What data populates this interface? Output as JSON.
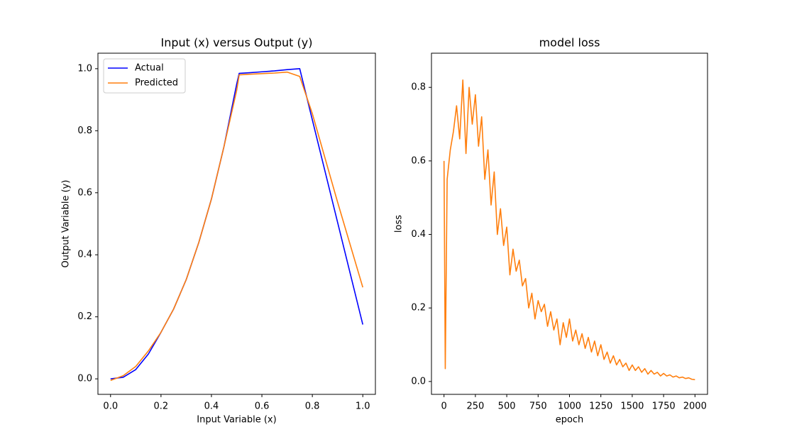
{
  "chart_data": [
    {
      "type": "line",
      "title": "Input (x) versus Output (y)",
      "xlabel": "Input Variable (x)",
      "ylabel": "Output Variable (y)",
      "x": [
        0,
        0.05,
        0.1,
        0.15,
        0.2,
        0.25,
        0.3,
        0.35,
        0.4,
        0.45,
        0.5,
        0.51,
        0.55,
        0.6,
        0.65,
        0.7,
        0.75,
        0.8,
        0.9,
        1.0
      ],
      "series": [
        {
          "name": "Actual",
          "color": "#0000ff",
          "values": [
            0,
            0.005,
            0.03,
            0.08,
            0.15,
            0.225,
            0.32,
            0.44,
            0.58,
            0.75,
            0.95,
            0.985,
            0.987,
            0.99,
            0.993,
            0.997,
            1.0,
            0.835,
            0.505,
            0.175
          ]
        },
        {
          "name": "Predicted",
          "color": "#ff7f0e",
          "values": [
            -0.005,
            0.01,
            0.04,
            0.09,
            0.15,
            0.225,
            0.32,
            0.44,
            0.58,
            0.75,
            0.93,
            0.98,
            0.982,
            0.984,
            0.986,
            0.989,
            0.975,
            0.855,
            0.57,
            0.295
          ]
        }
      ],
      "xlim": [
        -0.05,
        1.05
      ],
      "ylim": [
        -0.05,
        1.05
      ],
      "xticks": [
        {
          "value": 0,
          "label": "0.0"
        },
        0.2,
        0.4,
        0.6,
        0.8,
        {
          "value": 1,
          "label": "1.0"
        }
      ],
      "yticks": [
        {
          "value": 0,
          "label": "0.0"
        },
        0.2,
        0.4,
        0.6,
        0.8,
        {
          "value": 1,
          "label": "1.0"
        }
      ],
      "legend": "upper left"
    },
    {
      "type": "line",
      "title": "model loss",
      "xlabel": "epoch",
      "ylabel": "loss",
      "color": "#ff7f0e",
      "x": [
        0,
        10,
        25,
        50,
        75,
        100,
        125,
        150,
        175,
        200,
        225,
        250,
        275,
        300,
        325,
        350,
        375,
        400,
        425,
        450,
        475,
        500,
        525,
        550,
        575,
        600,
        625,
        650,
        675,
        700,
        725,
        750,
        775,
        800,
        825,
        850,
        875,
        900,
        925,
        950,
        975,
        1000,
        1025,
        1050,
        1075,
        1100,
        1125,
        1150,
        1175,
        1200,
        1225,
        1250,
        1275,
        1300,
        1325,
        1350,
        1375,
        1400,
        1425,
        1450,
        1475,
        1500,
        1525,
        1550,
        1575,
        1600,
        1625,
        1650,
        1675,
        1700,
        1725,
        1750,
        1775,
        1800,
        1825,
        1850,
        1875,
        1900,
        1925,
        1950,
        1975,
        2000
      ],
      "values": [
        0.6,
        0.035,
        0.55,
        0.63,
        0.68,
        0.75,
        0.66,
        0.82,
        0.62,
        0.8,
        0.7,
        0.78,
        0.64,
        0.72,
        0.55,
        0.63,
        0.48,
        0.57,
        0.4,
        0.47,
        0.37,
        0.42,
        0.29,
        0.36,
        0.3,
        0.33,
        0.26,
        0.28,
        0.2,
        0.24,
        0.17,
        0.22,
        0.19,
        0.21,
        0.15,
        0.19,
        0.14,
        0.17,
        0.1,
        0.16,
        0.12,
        0.17,
        0.11,
        0.14,
        0.1,
        0.13,
        0.09,
        0.12,
        0.08,
        0.11,
        0.07,
        0.1,
        0.06,
        0.08,
        0.05,
        0.07,
        0.045,
        0.06,
        0.04,
        0.05,
        0.03,
        0.045,
        0.03,
        0.04,
        0.025,
        0.035,
        0.02,
        0.03,
        0.02,
        0.025,
        0.015,
        0.022,
        0.015,
        0.018,
        0.012,
        0.015,
        0.01,
        0.012,
        0.008,
        0.01,
        0.006,
        0.005
      ],
      "xlim": [
        -100,
        2100
      ],
      "ylim": [
        -0.035,
        0.893
      ],
      "xticks": [
        0,
        250,
        500,
        750,
        1000,
        1250,
        1500,
        1750,
        2000
      ],
      "yticks": [
        {
          "value": 0,
          "label": "0.0"
        },
        0.2,
        0.4,
        0.6,
        0.8
      ]
    }
  ]
}
